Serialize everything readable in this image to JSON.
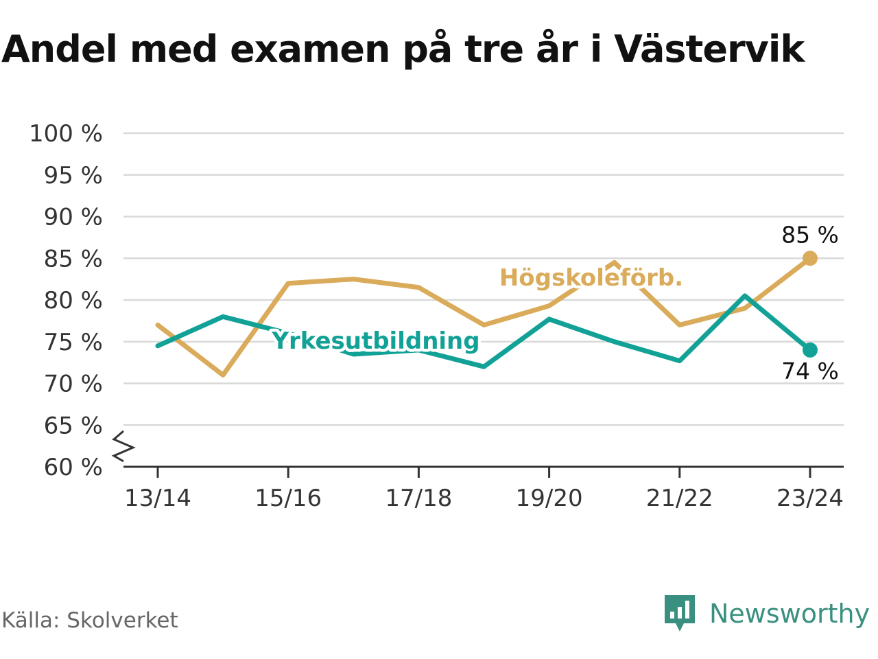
{
  "title": "Andel med examen på tre år i Västervik",
  "source": "Källa: Skolverket",
  "brand": {
    "name": "Newsworthy",
    "color": "#3a9080",
    "icon": "newsworthy-logo-icon"
  },
  "chart_data": {
    "type": "line",
    "title": "Andel med examen på tre år i Västervik",
    "categories": [
      "13/14",
      "14/15",
      "15/16",
      "16/17",
      "17/18",
      "18/19",
      "19/20",
      "20/21",
      "21/22",
      "22/23",
      "23/24"
    ],
    "x_tick_labels": [
      "13/14",
      "15/16",
      "17/18",
      "19/20",
      "21/22",
      "23/24"
    ],
    "ylim": [
      60,
      100
    ],
    "y_ticks": [
      60,
      65,
      70,
      75,
      80,
      85,
      90,
      95,
      100
    ],
    "y_tick_labels": [
      "60 %",
      "65 %",
      "70 %",
      "75 %",
      "80 %",
      "85 %",
      "90 %",
      "95 %",
      "100 %"
    ],
    "y_axis_break": true,
    "grid": true,
    "series": [
      {
        "name": "Högskoleförb.",
        "color": "#d9ab5a",
        "values": [
          77,
          71,
          82,
          82.5,
          81.5,
          77,
          79.3,
          84.5,
          77,
          79,
          85
        ],
        "end_label": "85 %"
      },
      {
        "name": "Yrkesutbildning",
        "color": "#12a196",
        "values": [
          74.5,
          78,
          76,
          73.5,
          74,
          72,
          77.7,
          75,
          72.7,
          80.5,
          74
        ],
        "end_label": "74 %"
      }
    ]
  }
}
